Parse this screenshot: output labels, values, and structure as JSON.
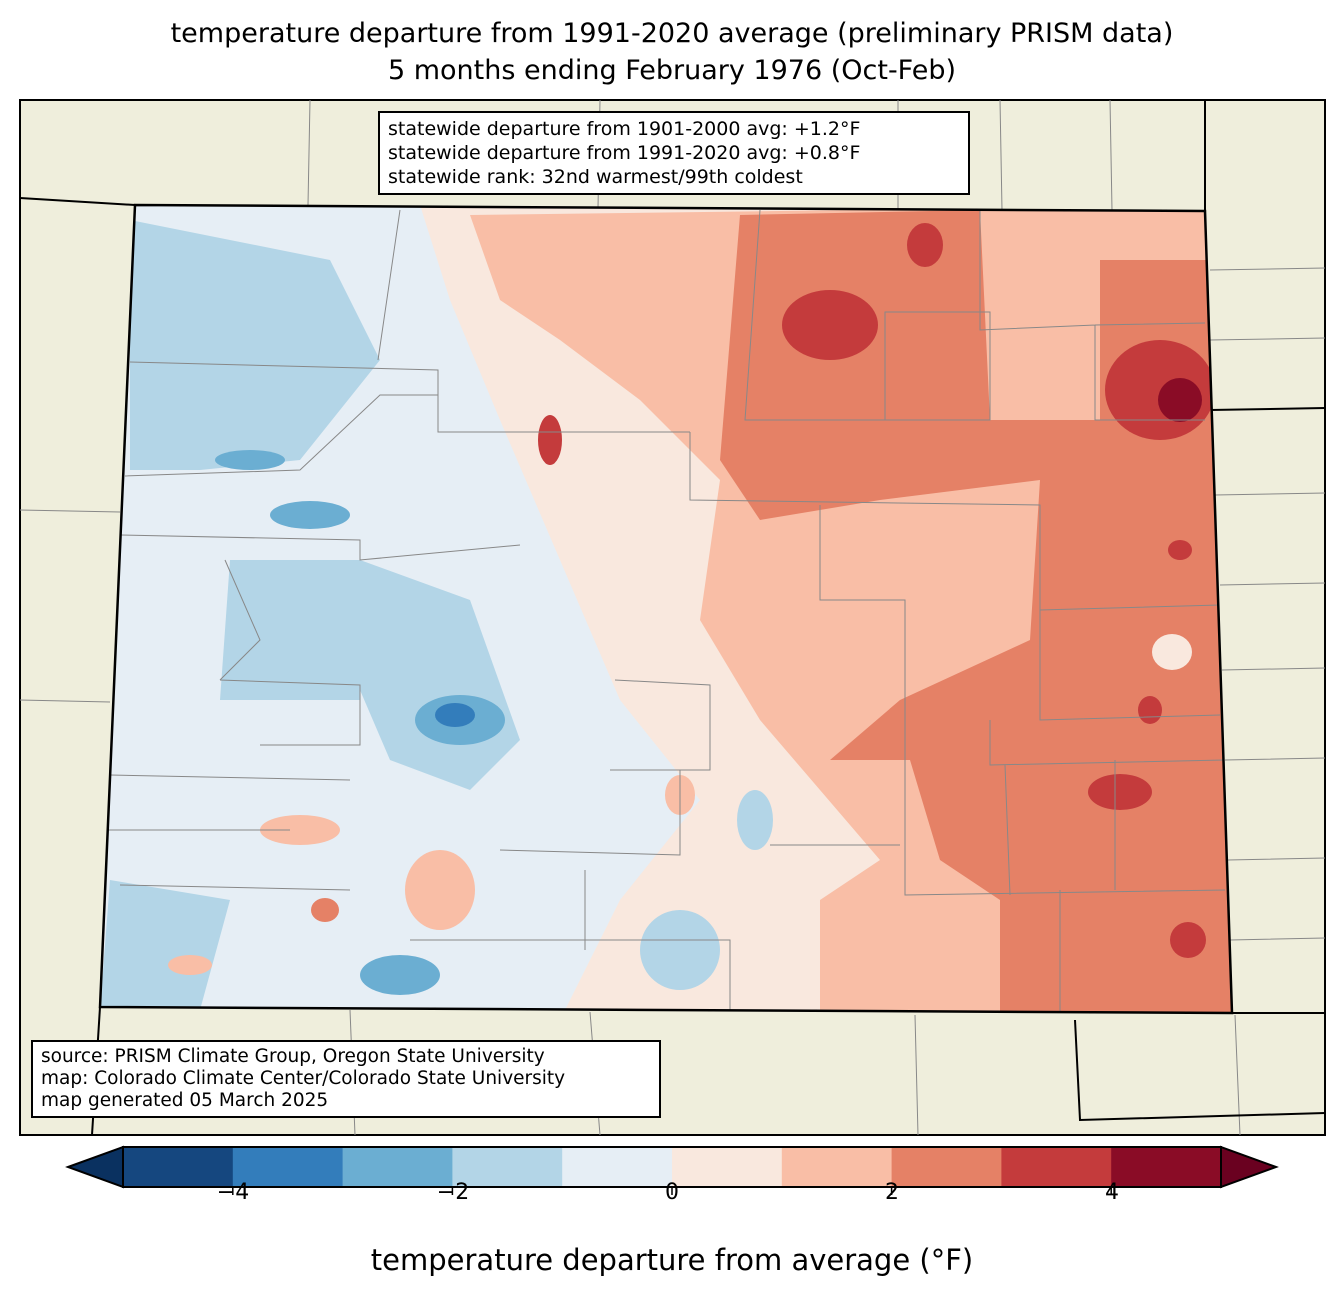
{
  "title_line1": "temperature departure from 1991-2020 average (preliminary PRISM data)",
  "title_line2": "5 months ending February 1976 (Oct-Feb)",
  "stats_box": [
    "statewide departure from 1901-2000 avg: +1.2°F",
    "statewide departure from 1991-2020 avg: +0.8°F",
    "statewide rank: 32nd warmest/99th coldest"
  ],
  "source_box": [
    "source: PRISM Climate Group, Oregon State University",
    "map: Colorado Climate Center/Colorado State University",
    "map generated 05 March 2025"
  ],
  "colorbar": {
    "label": "temperature departure from average (°F)",
    "ticks": [
      "−4",
      "−2",
      "0",
      "2",
      "4"
    ],
    "levels": [
      -5,
      -4,
      -3,
      -2,
      -1,
      0,
      1,
      2,
      3,
      4,
      5
    ],
    "colors": [
      "#15477f",
      "#337dbb",
      "#6baed2",
      "#b3d5e7",
      "#e6eef5",
      "#f9e8de",
      "#f9bea6",
      "#e58166",
      "#c43b3c",
      "#8a0c26"
    ],
    "under_color": "#0a3160",
    "over_color": "#6a0120"
  },
  "colors": {
    "land_background": "#efeedc"
  }
}
